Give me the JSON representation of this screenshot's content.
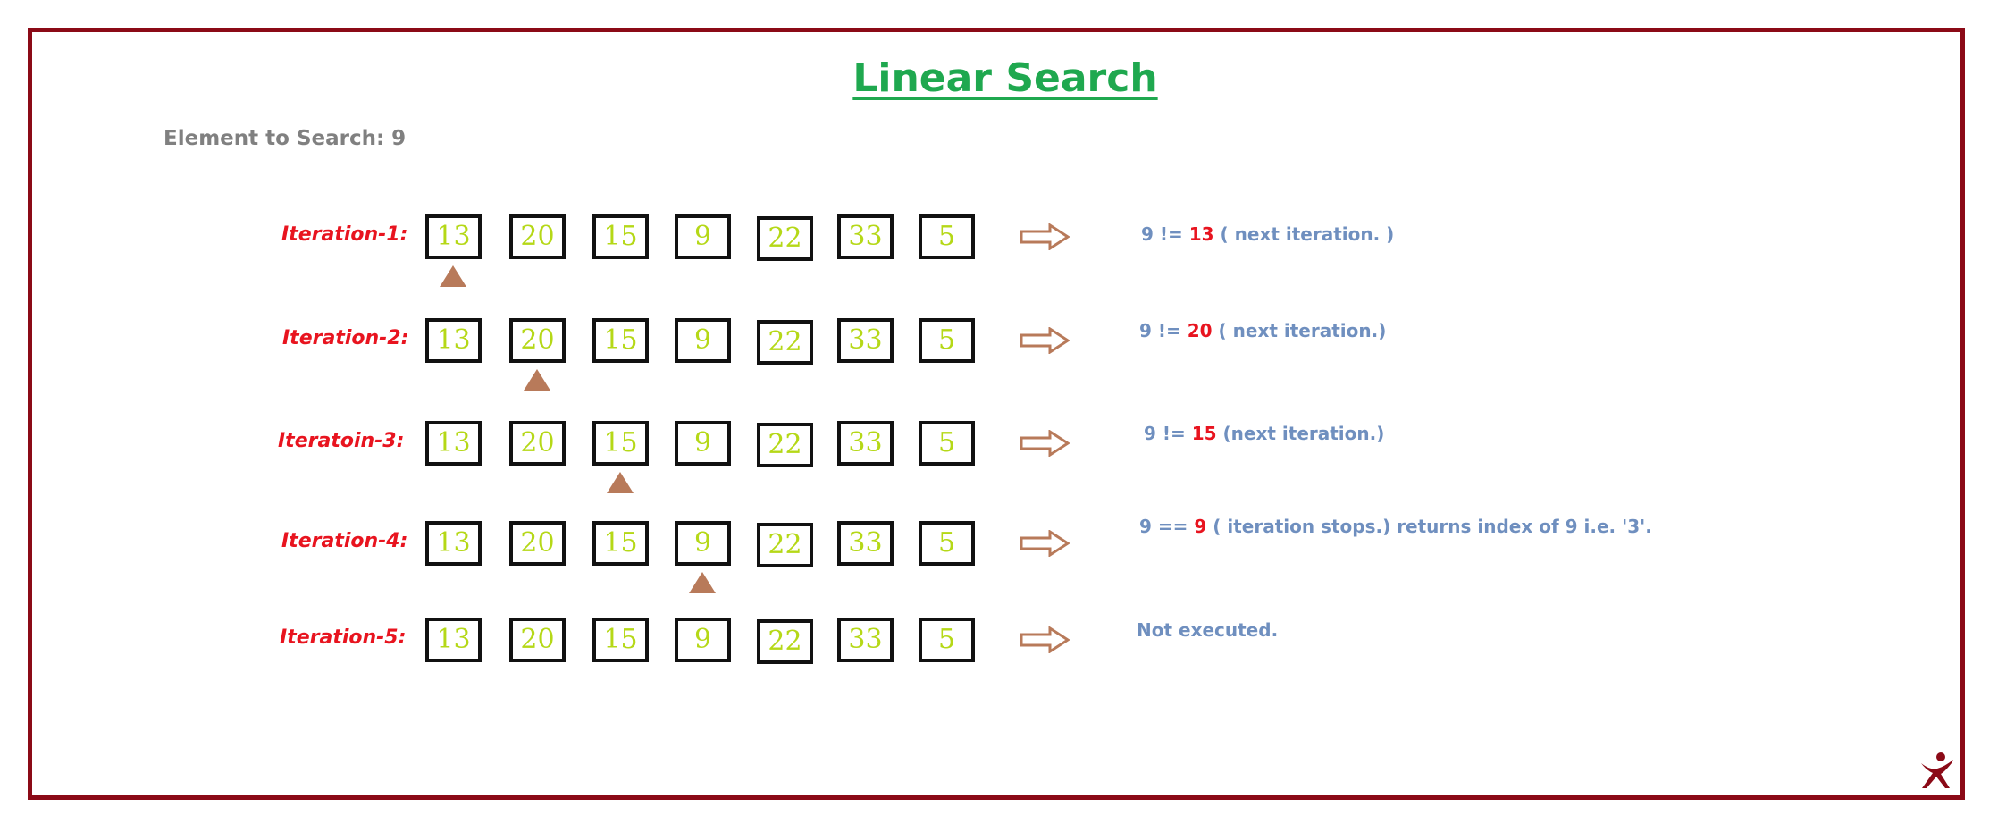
{
  "title": "Linear Search",
  "element_label": "Element to Search: 9",
  "array": [
    "13",
    "20",
    "15",
    "9",
    "22",
    "33",
    "5"
  ],
  "colors": {
    "frame": "#8b0a17",
    "title": "#1fa84f",
    "iteration_label": "#e8141f",
    "cell_value": "#b5d817",
    "pointer": "#b87a5a",
    "result_text": "#6f8fbf",
    "result_highlight": "#e8141f"
  },
  "iterations": [
    {
      "label": "Iteration-1:",
      "pointer_index": 0,
      "result": {
        "pre": "9 != ",
        "highlight": "13",
        "post": " ( next  iteration. )"
      }
    },
    {
      "label": "Iteration-2:",
      "pointer_index": 1,
      "result": {
        "pre": "9 != ",
        "highlight": "20",
        "post": " ( next  iteration.)"
      }
    },
    {
      "label": "Iteratoin-3:",
      "pointer_index": 2,
      "result": {
        "pre": "9 != ",
        "highlight": "15",
        "post": " (next iteration.)"
      }
    },
    {
      "label": "Iteration-4:",
      "pointer_index": 3,
      "result": {
        "pre": "9 == ",
        "highlight": "9",
        "post": " ( iteration stops.) returns index of 9 i.e. '3'."
      }
    },
    {
      "label": "Iteration-5:",
      "pointer_index": null,
      "result": {
        "pre": "Not executed.",
        "highlight": "",
        "post": ""
      }
    }
  ],
  "icons": {
    "arrow": "hollow-right-arrow-icon",
    "logo": "stick-figure-logo-icon"
  }
}
